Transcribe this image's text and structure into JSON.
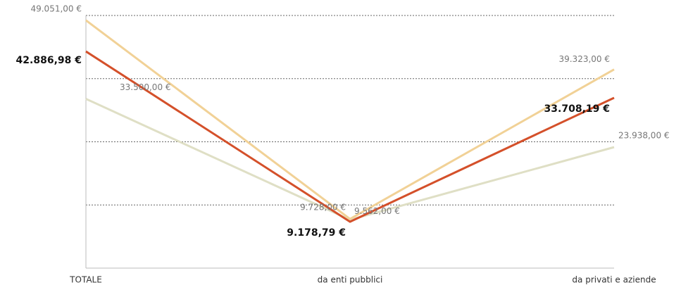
{
  "chart_data": {
    "type": "line",
    "categories": [
      "TOTALE",
      "da enti pubblici",
      "da privati e aziende"
    ],
    "series": [
      {
        "color": "#f1d196",
        "values": [
          49051,
          9728,
          39323
        ],
        "value_labels": [
          "49.051,00 €",
          "9.728,00 €",
          "39.323,00 €"
        ]
      },
      {
        "color": "#dfdfc5",
        "values": [
          33500,
          9562,
          23938
        ],
        "value_labels": [
          "33.500,00 €",
          "9.562,00 €",
          "23.938,00 €"
        ]
      },
      {
        "color": "#d4502a",
        "values": [
          42886.98,
          9178.79,
          33708.19
        ],
        "value_labels": [
          "42.886,98 €",
          "9.178,79 €",
          "33.708,19 €"
        ]
      }
    ],
    "ylim": [
      0,
      50000
    ],
    "yticks": [
      0,
      12500,
      25000,
      37500,
      50000
    ],
    "grid": true
  }
}
